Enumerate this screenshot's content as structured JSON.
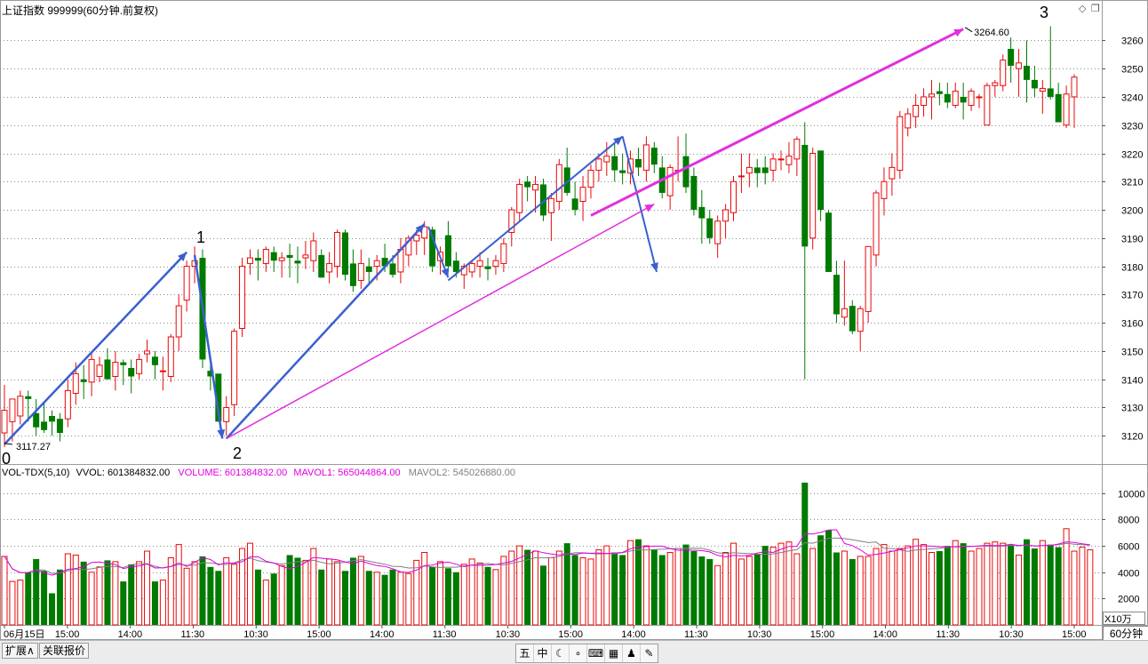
{
  "window": {
    "title": "上证指数 999999(60分钟.前复权)",
    "corner_icons": [
      "diamond-icon",
      "restore-icon"
    ]
  },
  "price_panel": {
    "axis_labels": [
      "3260",
      "3250",
      "3240",
      "3230",
      "3220",
      "3210",
      "3200",
      "3190",
      "3180",
      "3170",
      "3160",
      "3150",
      "3140",
      "3130",
      "3120"
    ],
    "wave_labels": [
      "0",
      "1",
      "2",
      "3"
    ],
    "low_marker": "3117.27",
    "high_marker": "3264.60"
  },
  "volume_panel": {
    "header_name": "VOL-TDX(5,10)",
    "header_vvol": "VVOL: 601384832.00",
    "header_volume": "VOLUME: 601384832.00",
    "header_mavol1": "MAVOL1: 565044864.00",
    "header_mavol2": "MAVOL2: 545026880.00",
    "axis_labels": [
      "10000",
      "8000",
      "6000",
      "4000",
      "2000"
    ],
    "unit": "X10万"
  },
  "time_axis": {
    "labels": [
      "06月15日",
      "15:00",
      "14:00",
      "11:30",
      "10:30",
      "15:00",
      "14:00",
      "11:30",
      "10:30",
      "15:00",
      "14:00",
      "11:30",
      "10:30",
      "15:00",
      "14:00",
      "11:30",
      "10:30",
      "15:00"
    ]
  },
  "period_label": "60分钟",
  "bottom_tabs": [
    "扩展∧",
    "关联报价"
  ],
  "toolbar_icons": [
    "五",
    "中",
    "☾",
    "∘",
    "⌨",
    "▦",
    "♟",
    "✎"
  ],
  "colors": {
    "up": "#e8080a",
    "down": "#007a00",
    "ma1": "#e000e0",
    "ma2": "#808080",
    "wave_blue": "#3a5fd0",
    "trend_magenta": "#e030e0",
    "grid": "#8c8c8c"
  },
  "chart_data": {
    "type": "candlestick",
    "title": "上证指数 999999(60分钟.前复权)",
    "ylim": [
      3110,
      3268
    ],
    "candles": [
      {
        "o": 3121,
        "h": 3138,
        "l": 3116,
        "c": 3129
      },
      {
        "o": 3125,
        "h": 3133,
        "l": 3118,
        "c": 3133
      },
      {
        "o": 3127,
        "h": 3136,
        "l": 3124,
        "c": 3134
      },
      {
        "o": 3134,
        "h": 3136,
        "l": 3125,
        "c": 3133
      },
      {
        "o": 3128,
        "h": 3133,
        "l": 3120,
        "c": 3123
      },
      {
        "o": 3125,
        "h": 3132,
        "l": 3121,
        "c": 3122
      },
      {
        "o": 3127,
        "h": 3129,
        "l": 3120,
        "c": 3125
      },
      {
        "o": 3126,
        "h": 3128,
        "l": 3118,
        "c": 3121
      },
      {
        "o": 3126,
        "h": 3140,
        "l": 3123,
        "c": 3136
      },
      {
        "o": 3135,
        "h": 3146,
        "l": 3131,
        "c": 3142
      },
      {
        "o": 3140,
        "h": 3145,
        "l": 3133,
        "c": 3139
      },
      {
        "o": 3139,
        "h": 3149,
        "l": 3134,
        "c": 3147
      },
      {
        "o": 3141,
        "h": 3148,
        "l": 3139,
        "c": 3145
      },
      {
        "o": 3147,
        "h": 3151,
        "l": 3140,
        "c": 3140
      },
      {
        "o": 3141,
        "h": 3150,
        "l": 3136,
        "c": 3146
      },
      {
        "o": 3146,
        "h": 3147,
        "l": 3138,
        "c": 3145
      },
      {
        "o": 3144,
        "h": 3147,
        "l": 3135,
        "c": 3141
      },
      {
        "o": 3142,
        "h": 3149,
        "l": 3140,
        "c": 3147
      },
      {
        "o": 3149,
        "h": 3154,
        "l": 3146,
        "c": 3150
      },
      {
        "o": 3148,
        "h": 3150,
        "l": 3140,
        "c": 3145
      },
      {
        "o": 3143,
        "h": 3148,
        "l": 3136,
        "c": 3143
      },
      {
        "o": 3141,
        "h": 3156,
        "l": 3139,
        "c": 3155
      },
      {
        "o": 3155,
        "h": 3170,
        "l": 3150,
        "c": 3166
      },
      {
        "o": 3168,
        "h": 3182,
        "l": 3164,
        "c": 3180
      },
      {
        "o": 3180,
        "h": 3187,
        "l": 3174,
        "c": 3182
      },
      {
        "o": 3183,
        "h": 3186,
        "l": 3144,
        "c": 3147
      },
      {
        "o": 3143,
        "h": 3146,
        "l": 3136,
        "c": 3141
      },
      {
        "o": 3142,
        "h": 3142,
        "l": 3125,
        "c": 3125
      },
      {
        "o": 3125,
        "h": 3134,
        "l": 3120,
        "c": 3130
      },
      {
        "o": 3131,
        "h": 3158,
        "l": 3127,
        "c": 3157
      },
      {
        "o": 3158,
        "h": 3183,
        "l": 3155,
        "c": 3180
      },
      {
        "o": 3181,
        "h": 3186,
        "l": 3177,
        "c": 3183
      },
      {
        "o": 3183,
        "h": 3186,
        "l": 3175,
        "c": 3182
      },
      {
        "o": 3181,
        "h": 3187,
        "l": 3178,
        "c": 3186
      },
      {
        "o": 3185,
        "h": 3187,
        "l": 3178,
        "c": 3182
      },
      {
        "o": 3182,
        "h": 3185,
        "l": 3176,
        "c": 3183
      },
      {
        "o": 3184,
        "h": 3188,
        "l": 3176,
        "c": 3183
      },
      {
        "o": 3182,
        "h": 3187,
        "l": 3174,
        "c": 3181
      },
      {
        "o": 3183,
        "h": 3189,
        "l": 3179,
        "c": 3184
      },
      {
        "o": 3182,
        "h": 3192,
        "l": 3178,
        "c": 3189
      },
      {
        "o": 3184,
        "h": 3186,
        "l": 3176,
        "c": 3176
      },
      {
        "o": 3178,
        "h": 3185,
        "l": 3174,
        "c": 3181
      },
      {
        "o": 3180,
        "h": 3193,
        "l": 3176,
        "c": 3192
      },
      {
        "o": 3192,
        "h": 3193,
        "l": 3175,
        "c": 3177
      },
      {
        "o": 3181,
        "h": 3186,
        "l": 3171,
        "c": 3173
      },
      {
        "o": 3175,
        "h": 3186,
        "l": 3172,
        "c": 3181
      },
      {
        "o": 3180,
        "h": 3183,
        "l": 3174,
        "c": 3178
      },
      {
        "o": 3180,
        "h": 3184,
        "l": 3175,
        "c": 3182
      },
      {
        "o": 3183,
        "h": 3188,
        "l": 3178,
        "c": 3180
      },
      {
        "o": 3181,
        "h": 3184,
        "l": 3176,
        "c": 3177
      },
      {
        "o": 3178,
        "h": 3190,
        "l": 3174,
        "c": 3186
      },
      {
        "o": 3184,
        "h": 3191,
        "l": 3180,
        "c": 3190
      },
      {
        "o": 3189,
        "h": 3193,
        "l": 3184,
        "c": 3191
      },
      {
        "o": 3190,
        "h": 3196,
        "l": 3184,
        "c": 3194
      },
      {
        "o": 3193,
        "h": 3194,
        "l": 3178,
        "c": 3180
      },
      {
        "o": 3182,
        "h": 3187,
        "l": 3177,
        "c": 3185
      },
      {
        "o": 3191,
        "h": 3196,
        "l": 3178,
        "c": 3180
      },
      {
        "o": 3182,
        "h": 3185,
        "l": 3176,
        "c": 3178
      },
      {
        "o": 3177,
        "h": 3181,
        "l": 3172,
        "c": 3180
      },
      {
        "o": 3178,
        "h": 3182,
        "l": 3176,
        "c": 3181
      },
      {
        "o": 3180,
        "h": 3185,
        "l": 3176,
        "c": 3182
      },
      {
        "o": 3180,
        "h": 3183,
        "l": 3175,
        "c": 3179
      },
      {
        "o": 3180,
        "h": 3184,
        "l": 3177,
        "c": 3182
      },
      {
        "o": 3181,
        "h": 3190,
        "l": 3178,
        "c": 3188
      },
      {
        "o": 3192,
        "h": 3201,
        "l": 3187,
        "c": 3200
      },
      {
        "o": 3199,
        "h": 3211,
        "l": 3196,
        "c": 3209
      },
      {
        "o": 3210,
        "h": 3212,
        "l": 3203,
        "c": 3208
      },
      {
        "o": 3207,
        "h": 3212,
        "l": 3199,
        "c": 3209
      },
      {
        "o": 3209,
        "h": 3211,
        "l": 3196,
        "c": 3198
      },
      {
        "o": 3199,
        "h": 3206,
        "l": 3189,
        "c": 3204
      },
      {
        "o": 3203,
        "h": 3218,
        "l": 3200,
        "c": 3216
      },
      {
        "o": 3215,
        "h": 3222,
        "l": 3205,
        "c": 3206
      },
      {
        "o": 3204,
        "h": 3210,
        "l": 3198,
        "c": 3200
      },
      {
        "o": 3203,
        "h": 3212,
        "l": 3196,
        "c": 3208
      },
      {
        "o": 3208,
        "h": 3216,
        "l": 3204,
        "c": 3214
      },
      {
        "o": 3214,
        "h": 3220,
        "l": 3210,
        "c": 3218
      },
      {
        "o": 3217,
        "h": 3224,
        "l": 3212,
        "c": 3219
      },
      {
        "o": 3219,
        "h": 3224,
        "l": 3210,
        "c": 3214
      },
      {
        "o": 3214,
        "h": 3220,
        "l": 3209,
        "c": 3213
      },
      {
        "o": 3213,
        "h": 3221,
        "l": 3209,
        "c": 3218
      },
      {
        "o": 3218,
        "h": 3222,
        "l": 3212,
        "c": 3215
      },
      {
        "o": 3214,
        "h": 3226,
        "l": 3210,
        "c": 3223
      },
      {
        "o": 3222,
        "h": 3224,
        "l": 3213,
        "c": 3216
      },
      {
        "o": 3215,
        "h": 3219,
        "l": 3204,
        "c": 3206
      },
      {
        "o": 3205,
        "h": 3216,
        "l": 3200,
        "c": 3215
      },
      {
        "o": 3214,
        "h": 3226,
        "l": 3210,
        "c": 3214
      },
      {
        "o": 3219,
        "h": 3227,
        "l": 3206,
        "c": 3208
      },
      {
        "o": 3212,
        "h": 3215,
        "l": 3198,
        "c": 3200
      },
      {
        "o": 3201,
        "h": 3207,
        "l": 3188,
        "c": 3197
      },
      {
        "o": 3197,
        "h": 3200,
        "l": 3188,
        "c": 3190
      },
      {
        "o": 3188,
        "h": 3198,
        "l": 3183,
        "c": 3196
      },
      {
        "o": 3196,
        "h": 3202,
        "l": 3190,
        "c": 3200
      },
      {
        "o": 3199,
        "h": 3212,
        "l": 3196,
        "c": 3210
      },
      {
        "o": 3212,
        "h": 3220,
        "l": 3206,
        "c": 3212
      },
      {
        "o": 3213,
        "h": 3220,
        "l": 3208,
        "c": 3215
      },
      {
        "o": 3215,
        "h": 3218,
        "l": 3208,
        "c": 3213
      },
      {
        "o": 3215,
        "h": 3219,
        "l": 3209,
        "c": 3213
      },
      {
        "o": 3214,
        "h": 3220,
        "l": 3210,
        "c": 3218
      },
      {
        "o": 3218,
        "h": 3221,
        "l": 3214,
        "c": 3218
      },
      {
        "o": 3216,
        "h": 3224,
        "l": 3213,
        "c": 3219
      },
      {
        "o": 3218,
        "h": 3226,
        "l": 3212,
        "c": 3225
      },
      {
        "o": 3223,
        "h": 3231,
        "l": 3140,
        "c": 3187
      },
      {
        "o": 3190,
        "h": 3222,
        "l": 3186,
        "c": 3220
      },
      {
        "o": 3221,
        "h": 3220,
        "l": 3196,
        "c": 3200
      },
      {
        "o": 3199,
        "h": 3200,
        "l": 3178,
        "c": 3178
      },
      {
        "o": 3177,
        "h": 3182,
        "l": 3160,
        "c": 3163
      },
      {
        "o": 3162,
        "h": 3182,
        "l": 3159,
        "c": 3165
      },
      {
        "o": 3166,
        "h": 3168,
        "l": 3156,
        "c": 3157
      },
      {
        "o": 3157,
        "h": 3166,
        "l": 3150,
        "c": 3165
      },
      {
        "o": 3164,
        "h": 3187,
        "l": 3160,
        "c": 3187
      },
      {
        "o": 3184,
        "h": 3207,
        "l": 3180,
        "c": 3206
      },
      {
        "o": 3204,
        "h": 3215,
        "l": 3198,
        "c": 3210
      },
      {
        "o": 3211,
        "h": 3220,
        "l": 3205,
        "c": 3215
      },
      {
        "o": 3214,
        "h": 3235,
        "l": 3211,
        "c": 3233
      },
      {
        "o": 3229,
        "h": 3236,
        "l": 3226,
        "c": 3234
      },
      {
        "o": 3233,
        "h": 3241,
        "l": 3229,
        "c": 3237
      },
      {
        "o": 3237,
        "h": 3243,
        "l": 3233,
        "c": 3240
      },
      {
        "o": 3240,
        "h": 3246,
        "l": 3232,
        "c": 3241
      },
      {
        "o": 3242,
        "h": 3245,
        "l": 3237,
        "c": 3241
      },
      {
        "o": 3241,
        "h": 3245,
        "l": 3236,
        "c": 3238
      },
      {
        "o": 3237,
        "h": 3245,
        "l": 3236,
        "c": 3242
      },
      {
        "o": 3240,
        "h": 3245,
        "l": 3232,
        "c": 3238
      },
      {
        "o": 3237,
        "h": 3243,
        "l": 3235,
        "c": 3242
      },
      {
        "o": 3240,
        "h": 3241,
        "l": 3236,
        "c": 3240
      },
      {
        "o": 3230,
        "h": 3245,
        "l": 3230,
        "c": 3244
      },
      {
        "o": 3244,
        "h": 3246,
        "l": 3240,
        "c": 3245
      },
      {
        "o": 3244,
        "h": 3255,
        "l": 3242,
        "c": 3253
      },
      {
        "o": 3257,
        "h": 3261,
        "l": 3245,
        "c": 3251
      },
      {
        "o": 3250,
        "h": 3257,
        "l": 3240,
        "c": 3252
      },
      {
        "o": 3251,
        "h": 3260,
        "l": 3238,
        "c": 3246
      },
      {
        "o": 3246,
        "h": 3251,
        "l": 3240,
        "c": 3243
      },
      {
        "o": 3242,
        "h": 3246,
        "l": 3234,
        "c": 3243
      },
      {
        "o": 3243,
        "h": 3265,
        "l": 3239,
        "c": 3240
      },
      {
        "o": 3241,
        "h": 3245,
        "l": 3232,
        "c": 3231
      },
      {
        "o": 3230,
        "h": 3244,
        "l": 3229,
        "c": 3241
      },
      {
        "o": 3240,
        "h": 3248,
        "l": 3229,
        "c": 3247
      }
    ],
    "volume": {
      "ylim": [
        0,
        11000
      ],
      "bars": [
        5200,
        3300,
        3400,
        4000,
        5000,
        4100,
        2400,
        4200,
        5400,
        5300,
        4800,
        4000,
        4400,
        4900,
        4800,
        3300,
        4600,
        4800,
        5600,
        3300,
        3400,
        5100,
        6100,
        4300,
        4800,
        5200,
        4400,
        4100,
        5100,
        4600,
        5800,
        6200,
        4200,
        3400,
        3900,
        4500,
        5300,
        5100,
        4900,
        5800,
        4200,
        5000,
        4800,
        4100,
        5100,
        5200,
        4100,
        4000,
        3800,
        4200,
        4000,
        3900,
        4900,
        5500,
        4400,
        4800,
        4300,
        4000,
        4600,
        5000,
        4700,
        4400,
        4200,
        5200,
        5600,
        6000,
        5700,
        5600,
        4500,
        5100,
        5600,
        6200,
        5300,
        5100,
        5000,
        5700,
        6000,
        5500,
        5300,
        6400,
        6500,
        6000,
        5700,
        5300,
        5500,
        5800,
        6100,
        5600,
        5200,
        5000,
        4500,
        5500,
        6200,
        5000,
        5200,
        5400,
        6000,
        5900,
        6200,
        6300,
        5400,
        10800,
        5800,
        6800,
        7200,
        5500,
        5600,
        5000,
        5200,
        5200,
        5800,
        6100,
        5600,
        5800,
        6000,
        6500,
        6100,
        5500,
        5600,
        6000,
        6400,
        6200,
        5600,
        5800,
        6200,
        6300,
        6200,
        6100,
        5300,
        6500,
        5800,
        6400,
        6100,
        5900,
        7300,
        5600,
        5900,
        5700
      ],
      "mavol1_note": "MAVOL1",
      "mavol2_note": "MAVOL2"
    }
  }
}
